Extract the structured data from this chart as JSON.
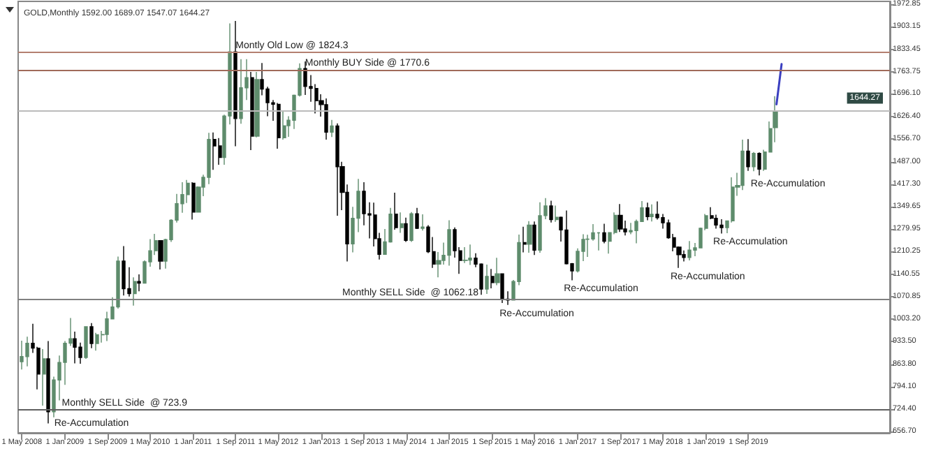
{
  "chart_data": {
    "type": "candlestick",
    "title": "GOLD,Monthly 1592.00 1689.07 1547.07 1644.27",
    "series": [
      {
        "colors": [
          "#5e8c6c",
          "#5e8c6c",
          "#000000",
          "#000000",
          "#5e8c6c",
          "#000000",
          "#5e8c6c",
          "#5e8c6c",
          "#5e8c6c",
          "#5e8c6c",
          "#000000",
          "#000000",
          "#5e8c6c",
          "#000000",
          "#5e8c6c",
          "#5e8c6c",
          "#5e8c6c",
          "#5e8c6c",
          "#5e8c6c",
          "#000000",
          "#000000",
          "#5e8c6c",
          "#000000",
          "#5e8c6c",
          "#5e8c6c",
          "#5e8c6c",
          "#000000",
          "#5e8c6c",
          "#5e8c6c",
          "#5e8c6c",
          "#5e8c6c",
          "#5e8c6c",
          "#000000",
          "#5e8c6c",
          "#5e8c6c",
          "#5e8c6c",
          "#000000",
          "#000000",
          "#5e8c6c",
          "#5e8c6c",
          "#000000",
          "#5e8c6c",
          "#5e8c6c",
          "#000000",
          "#5e8c6c",
          "#000000",
          "#000000",
          "#000000",
          "#000000",
          "#5e8c6c",
          "#5e8c6c",
          "#5e8c6c",
          "#5e8c6c",
          "#000000",
          "#000000",
          "#000000",
          "#000000",
          "#000000",
          "#5e8c6c",
          "#000000",
          "#000000",
          "#000000",
          "#5e8c6c",
          "#5e8c6c",
          "#000000",
          "#000000",
          "#000000",
          "#000000",
          "#5e8c6c",
          "#5e8c6c",
          "#000000",
          "#5e8c6c",
          "#000000",
          "#5e8c6c",
          "#000000",
          "#5e8c6c",
          "#000000",
          "#000000",
          "#5e8c6c",
          "#5e8c6c",
          "#5e8c6c",
          "#000000",
          "#000000",
          "#5e8c6c",
          "#5e8c6c",
          "#000000",
          "#000000",
          "#5e8c6c",
          "#000000",
          "#5e8c6c",
          "#000000",
          "#000000",
          "#5e8c6c",
          "#5e8c6c",
          "#000000",
          "#5e8c6c",
          "#000000",
          "#5e8c6c",
          "#5e8c6c",
          "#000000",
          "#5e8c6c",
          "#000000",
          "#000000",
          "#000000",
          "#5e8c6c",
          "#5e8c6c",
          "#5e8c6c",
          "#5e8c6c",
          "#5e8c6c",
          "#000000",
          "#5e8c6c",
          "#5e8c6c",
          "#000000",
          "#000000",
          "#5e8c6c",
          "#5e8c6c",
          "#5e8c6c",
          "#000000",
          "#5e8c6c",
          "#000000",
          "#000000",
          "#000000",
          "#000000",
          "#000000",
          "#000000",
          "#5e8c6c",
          "#5e8c6c",
          "#5e8c6c",
          "#5e8c6c",
          "#000000",
          "#000000",
          "#000000",
          "#5e8c6c",
          "#5e8c6c",
          "#5e8c6c",
          "#5e8c6c",
          "#000000",
          "#5e8c6c",
          "#000000",
          "#5e8c6c",
          "#5e8c6c",
          "#5e8c6c"
        ],
        "x": [
          "2008-05",
          "2008-06",
          "2008-07",
          "2008-08",
          "2008-09",
          "2008-10",
          "2008-11",
          "2008-12",
          "2009-01",
          "2009-02",
          "2009-03",
          "2009-04",
          "2009-05",
          "2009-06",
          "2009-07",
          "2009-08",
          "2009-09",
          "2009-10",
          "2009-11",
          "2009-12",
          "2010-01",
          "2010-02",
          "2010-03",
          "2010-04",
          "2010-05",
          "2010-06",
          "2010-07",
          "2010-08",
          "2010-09",
          "2010-10",
          "2010-11",
          "2010-12",
          "2011-01",
          "2011-02",
          "2011-03",
          "2011-04",
          "2011-05",
          "2011-06",
          "2011-07",
          "2011-08",
          "2011-09",
          "2011-10",
          "2011-11",
          "2011-12",
          "2012-01",
          "2012-02",
          "2012-03",
          "2012-04",
          "2012-05",
          "2012-06",
          "2012-07",
          "2012-08",
          "2012-09",
          "2012-10",
          "2012-11",
          "2012-12",
          "2013-01",
          "2013-02",
          "2013-03",
          "2013-04",
          "2013-05",
          "2013-06",
          "2013-07",
          "2013-08",
          "2013-09",
          "2013-10",
          "2013-11",
          "2013-12",
          "2014-01",
          "2014-02",
          "2014-03",
          "2014-04",
          "2014-05",
          "2014-06",
          "2014-07",
          "2014-08",
          "2014-09",
          "2014-10",
          "2014-11",
          "2014-12",
          "2015-01",
          "2015-02",
          "2015-03",
          "2015-04",
          "2015-05",
          "2015-06",
          "2015-07",
          "2015-08",
          "2015-09",
          "2015-10",
          "2015-11",
          "2015-12",
          "2016-01",
          "2016-02",
          "2016-03",
          "2016-04",
          "2016-05",
          "2016-06",
          "2016-07",
          "2016-08",
          "2016-09",
          "2016-10",
          "2016-11",
          "2016-12",
          "2017-01",
          "2017-02",
          "2017-03",
          "2017-04",
          "2017-05",
          "2017-06",
          "2017-07",
          "2017-08",
          "2017-09",
          "2017-10",
          "2017-11",
          "2017-12",
          "2018-01",
          "2018-02",
          "2018-03",
          "2018-04",
          "2018-05",
          "2018-06",
          "2018-07",
          "2018-08",
          "2018-09",
          "2018-10",
          "2018-11",
          "2018-12",
          "2019-01",
          "2019-02",
          "2019-03",
          "2019-04",
          "2019-05",
          "2019-06",
          "2019-07",
          "2019-08",
          "2019-09",
          "2019-10",
          "2019-11",
          "2019-12",
          "2020-01",
          "2020-02"
        ],
        "ohlc": [
          [
            871,
            936,
            847,
            887
          ],
          [
            887,
            948,
            857,
            928
          ],
          [
            928,
            988,
            898,
            913
          ],
          [
            913,
            917,
            786,
            833
          ],
          [
            833,
            910,
            736,
            880
          ],
          [
            880,
            935,
            681,
            717
          ],
          [
            717,
            825,
            700,
            815
          ],
          [
            815,
            890,
            752,
            869
          ],
          [
            869,
            935,
            800,
            928
          ],
          [
            928,
            1006,
            920,
            942
          ],
          [
            942,
            964,
            866,
            916
          ],
          [
            916,
            930,
            865,
            884
          ],
          [
            884,
            980,
            880,
            979
          ],
          [
            979,
            990,
            913,
            927
          ],
          [
            927,
            960,
            905,
            954
          ],
          [
            954,
            966,
            930,
            955
          ],
          [
            955,
            1025,
            935,
            1003
          ],
          [
            1003,
            1070,
            1003,
            1040
          ],
          [
            1040,
            1195,
            1035,
            1181
          ],
          [
            1181,
            1227,
            1075,
            1096
          ],
          [
            1096,
            1162,
            1072,
            1081
          ],
          [
            1081,
            1131,
            1044,
            1118
          ],
          [
            1118,
            1140,
            1088,
            1113
          ],
          [
            1113,
            1183,
            1112,
            1179
          ],
          [
            1179,
            1249,
            1164,
            1213
          ],
          [
            1213,
            1265,
            1200,
            1244
          ],
          [
            1244,
            1245,
            1155,
            1181
          ],
          [
            1181,
            1250,
            1158,
            1247
          ],
          [
            1247,
            1310,
            1240,
            1307
          ],
          [
            1307,
            1388,
            1300,
            1358
          ],
          [
            1358,
            1424,
            1330,
            1386
          ],
          [
            1386,
            1431,
            1360,
            1421
          ],
          [
            1421,
            1424,
            1309,
            1332
          ],
          [
            1332,
            1411,
            1331,
            1409
          ],
          [
            1409,
            1447,
            1381,
            1439
          ],
          [
            1439,
            1576,
            1418,
            1556
          ],
          [
            1556,
            1577,
            1462,
            1536
          ],
          [
            1536,
            1560,
            1478,
            1500
          ],
          [
            1500,
            1632,
            1478,
            1628
          ],
          [
            1628,
            1913,
            1602,
            1826
          ],
          [
            1826,
            1921,
            1535,
            1620
          ],
          [
            1620,
            1803,
            1604,
            1715
          ],
          [
            1715,
            1803,
            1677,
            1746
          ],
          [
            1746,
            1764,
            1523,
            1566
          ],
          [
            1566,
            1764,
            1562,
            1740
          ],
          [
            1740,
            1791,
            1692,
            1711
          ],
          [
            1711,
            1718,
            1627,
            1669
          ],
          [
            1669,
            1677,
            1613,
            1664
          ],
          [
            1664,
            1668,
            1527,
            1561
          ],
          [
            1561,
            1641,
            1555,
            1598
          ],
          [
            1598,
            1627,
            1564,
            1615
          ],
          [
            1615,
            1694,
            1588,
            1692
          ],
          [
            1692,
            1790,
            1688,
            1774
          ],
          [
            1774,
            1796,
            1693,
            1719
          ],
          [
            1719,
            1754,
            1672,
            1713
          ],
          [
            1713,
            1726,
            1636,
            1675
          ],
          [
            1675,
            1695,
            1626,
            1663
          ],
          [
            1663,
            1682,
            1555,
            1578
          ],
          [
            1578,
            1616,
            1563,
            1597
          ],
          [
            1597,
            1605,
            1321,
            1472
          ],
          [
            1472,
            1487,
            1338,
            1393
          ],
          [
            1393,
            1417,
            1180,
            1234
          ],
          [
            1234,
            1348,
            1208,
            1313
          ],
          [
            1313,
            1434,
            1270,
            1396
          ],
          [
            1396,
            1424,
            1291,
            1327
          ],
          [
            1327,
            1362,
            1251,
            1323
          ],
          [
            1323,
            1361,
            1226,
            1250
          ],
          [
            1250,
            1268,
            1186,
            1202
          ],
          [
            1202,
            1280,
            1202,
            1240
          ],
          [
            1240,
            1345,
            1238,
            1326
          ],
          [
            1326,
            1392,
            1278,
            1284
          ],
          [
            1284,
            1331,
            1268,
            1296
          ],
          [
            1296,
            1315,
            1240,
            1245
          ],
          [
            1245,
            1332,
            1240,
            1327
          ],
          [
            1327,
            1345,
            1280,
            1282
          ],
          [
            1282,
            1325,
            1275,
            1286
          ],
          [
            1286,
            1292,
            1206,
            1210
          ],
          [
            1210,
            1255,
            1160,
            1172
          ],
          [
            1172,
            1209,
            1131,
            1183
          ],
          [
            1183,
            1238,
            1170,
            1199
          ],
          [
            1199,
            1307,
            1167,
            1278
          ],
          [
            1278,
            1285,
            1192,
            1213
          ],
          [
            1213,
            1224,
            1142,
            1183
          ],
          [
            1183,
            1224,
            1175,
            1184
          ],
          [
            1184,
            1232,
            1169,
            1190
          ],
          [
            1190,
            1205,
            1162,
            1172
          ],
          [
            1172,
            1174,
            1077,
            1095
          ],
          [
            1095,
            1170,
            1080,
            1134
          ],
          [
            1134,
            1157,
            1097,
            1115
          ],
          [
            1115,
            1191,
            1107,
            1142
          ],
          [
            1142,
            1143,
            1052,
            1064
          ],
          [
            1064,
            1088,
            1046,
            1061
          ],
          [
            1061,
            1123,
            1061,
            1118
          ],
          [
            1118,
            1263,
            1107,
            1238
          ],
          [
            1238,
            1287,
            1208,
            1233
          ],
          [
            1233,
            1304,
            1207,
            1292
          ],
          [
            1292,
            1303,
            1200,
            1215
          ],
          [
            1215,
            1362,
            1207,
            1321
          ],
          [
            1321,
            1375,
            1310,
            1351
          ],
          [
            1351,
            1367,
            1300,
            1309
          ],
          [
            1309,
            1352,
            1302,
            1316
          ],
          [
            1316,
            1318,
            1241,
            1277
          ],
          [
            1277,
            1337,
            1171,
            1173
          ],
          [
            1173,
            1175,
            1122,
            1151
          ],
          [
            1151,
            1220,
            1146,
            1211
          ],
          [
            1211,
            1264,
            1181,
            1248
          ],
          [
            1248,
            1262,
            1194,
            1249
          ],
          [
            1249,
            1295,
            1244,
            1268
          ],
          [
            1268,
            1270,
            1214,
            1268
          ],
          [
            1268,
            1296,
            1236,
            1242
          ],
          [
            1242,
            1270,
            1204,
            1269
          ],
          [
            1269,
            1331,
            1264,
            1322
          ],
          [
            1322,
            1357,
            1271,
            1280
          ],
          [
            1280,
            1306,
            1260,
            1271
          ],
          [
            1271,
            1299,
            1264,
            1275
          ],
          [
            1275,
            1309,
            1236,
            1303
          ],
          [
            1303,
            1366,
            1302,
            1345
          ],
          [
            1345,
            1361,
            1307,
            1318
          ],
          [
            1318,
            1356,
            1303,
            1325
          ],
          [
            1325,
            1365,
            1309,
            1315
          ],
          [
            1315,
            1326,
            1281,
            1299
          ],
          [
            1299,
            1309,
            1250,
            1253
          ],
          [
            1253,
            1265,
            1211,
            1224
          ],
          [
            1224,
            1226,
            1160,
            1201
          ],
          [
            1201,
            1214,
            1180,
            1192
          ],
          [
            1192,
            1243,
            1183,
            1215
          ],
          [
            1215,
            1237,
            1196,
            1222
          ],
          [
            1222,
            1284,
            1221,
            1282
          ],
          [
            1282,
            1326,
            1276,
            1321
          ],
          [
            1321,
            1347,
            1310,
            1313
          ],
          [
            1313,
            1324,
            1281,
            1292
          ],
          [
            1292,
            1310,
            1266,
            1284
          ],
          [
            1284,
            1306,
            1267,
            1305
          ],
          [
            1305,
            1439,
            1300,
            1409
          ],
          [
            1409,
            1453,
            1382,
            1414
          ],
          [
            1414,
            1555,
            1400,
            1520
          ],
          [
            1520,
            1557,
            1459,
            1472
          ],
          [
            1472,
            1517,
            1458,
            1513
          ],
          [
            1513,
            1516,
            1445,
            1464
          ],
          [
            1464,
            1524,
            1459,
            1517
          ],
          [
            1517,
            1611,
            1517,
            1589
          ],
          [
            1592,
            1689,
            1547,
            1644
          ]
        ]
      },
      {
        "type": "line",
        "color": "#3b3fc0",
        "x": [
          "2020-02-08",
          "2020-03-08"
        ],
        "values": [
          1664,
          1788
        ]
      }
    ],
    "marker": "none",
    "line_style": "solid",
    "grid": false,
    "xlim": [
      "2008-04-10",
      "2021-11-15"
    ],
    "xticks": [
      {
        "value": "2008-05-01",
        "label": "1 May 2008"
      },
      {
        "value": "2009-01-01",
        "label": "1 Jan 2009"
      },
      {
        "value": "2009-09-01",
        "label": "1 Sep 2009"
      },
      {
        "value": "2010-05-01",
        "label": "1 May 2010"
      },
      {
        "value": "2011-01-01",
        "label": "1 Jan 2011"
      },
      {
        "value": "2011-09-01",
        "label": "1 Sep 2011"
      },
      {
        "value": "2012-05-01",
        "label": "1 May 2012"
      },
      {
        "value": "2013-01-01",
        "label": "1 Jan 2013"
      },
      {
        "value": "2013-09-01",
        "label": "1 Sep 2013"
      },
      {
        "value": "2014-05-01",
        "label": "1 May 2014"
      },
      {
        "value": "2015-01-01",
        "label": "1 Jan 2015"
      },
      {
        "value": "2015-09-01",
        "label": "1 Sep 2015"
      },
      {
        "value": "2016-05-01",
        "label": "1 May 2016"
      },
      {
        "value": "2017-01-01",
        "label": "1 Jan 2017"
      },
      {
        "value": "2017-09-01",
        "label": "1 Sep 2017"
      },
      {
        "value": "2018-05-01",
        "label": "1 May 2018"
      },
      {
        "value": "2019-01-01",
        "label": "1 Jan 2019"
      },
      {
        "value": "2019-09-01",
        "label": "1 Sep 2019"
      }
    ],
    "ylim": [
      652,
      1981
    ],
    "yticks": [
      {
        "value": 656.7,
        "label": "656.70"
      },
      {
        "value": 724.4,
        "label": "724.40"
      },
      {
        "value": 794.1,
        "label": "794.10"
      },
      {
        "value": 863.8,
        "label": "863.80"
      },
      {
        "value": 933.5,
        "label": "933.50"
      },
      {
        "value": 1003.2,
        "label": "1003.20"
      },
      1070.85,
      1140.55,
      1210.25,
      1279.95,
      1349.65,
      {
        "value": 1417.3,
        "label": "1417.30"
      },
      {
        "value": 1487,
        "label": "1487.00"
      },
      {
        "value": 1556.7,
        "label": "1556.70"
      },
      {
        "value": 1626.4,
        "label": "1626.40"
      },
      {
        "value": 1696.1,
        "label": "1696.10"
      },
      1763.75,
      1833.45,
      1903.15,
      1972.85
    ],
    "ref_lines": [
      {
        "axis": "y",
        "value": 1824.3,
        "color": "#b48070"
      },
      {
        "axis": "y",
        "value": 1770.6,
        "color": "#a06a5a"
      },
      {
        "axis": "y",
        "value": 1644.27,
        "label": "1644.27",
        "color": "#bbbbbb"
      },
      {
        "axis": "y",
        "value": 1062.18,
        "color": "#808080"
      },
      {
        "axis": "y",
        "value": 723.9,
        "color": "#606060"
      }
    ],
    "annotations": [
      {
        "text": "Montly Old Low @ 1824.3",
        "x": "2011-09-01",
        "y": 1824.3
      },
      {
        "text": "Monthly BUY Side @ 1770.6",
        "x": "2012-10-01",
        "y": 1770.6
      },
      {
        "text": "Monthly SELL Side  @ 1062.18",
        "x": "2013-05-01",
        "y": 1062.18
      },
      {
        "text": "Monthly SELL Side  @ 723.9",
        "x": "2008-12-15",
        "y": 723.9
      },
      {
        "text": "Re-Accumulation",
        "x": "2008-10",
        "y": 681
      },
      {
        "text": "Re-Accumulation",
        "x": "2015-12",
        "y": 1046
      },
      {
        "text": "Re-Accumulation",
        "x": "2016-12",
        "y": 1122
      },
      {
        "text": "Re-Accumulation",
        "x": "2018-08",
        "y": 1160
      },
      {
        "text": "Re-Accumulation",
        "x": "2019-04",
        "y": 1266
      },
      {
        "text": "Re-Accumulation",
        "x": "2019-11",
        "y": 1445
      }
    ]
  }
}
